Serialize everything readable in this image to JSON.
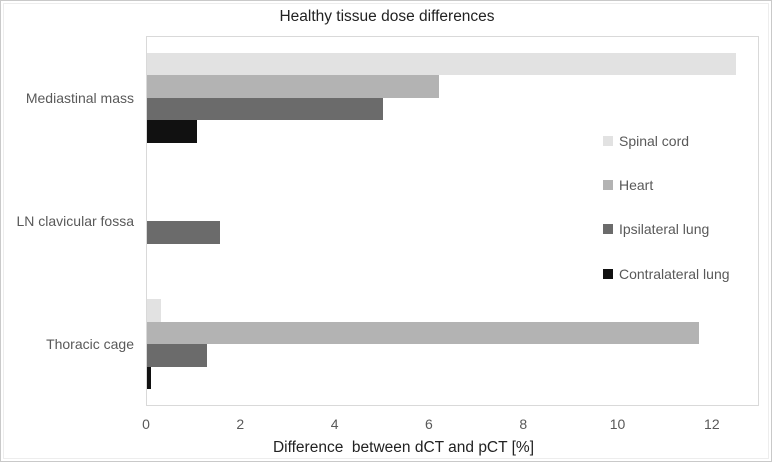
{
  "chart_data": {
    "type": "bar",
    "orientation": "horizontal",
    "title": "Healthy tissue dose differences",
    "xlabel": "Difference  between dCT and pCT [%]",
    "ylabel": "",
    "categories": [
      "Mediastinal mass",
      "LN clavicular fossa",
      "Thoracic cage"
    ],
    "series": [
      {
        "name": "Spinal cord",
        "color": "#e2e2e2",
        "values": [
          12.5,
          0,
          0.3
        ]
      },
      {
        "name": "Heart",
        "color": "#b3b3b3",
        "values": [
          6.2,
          0,
          11.7
        ]
      },
      {
        "name": "Ipsilateral lung",
        "color": "#6b6b6b",
        "values": [
          5.0,
          1.55,
          1.27
        ]
      },
      {
        "name": "Contralateral lung",
        "color": "#111111",
        "values": [
          1.05,
          0,
          0.08
        ]
      }
    ],
    "xlim": [
      0,
      13
    ],
    "xticks": [
      0,
      2,
      4,
      6,
      8,
      10,
      12
    ],
    "grid": false,
    "legend_position": "right-inside",
    "plot_border_color": "#d9d9d9",
    "text_colors": {
      "title": "#222222",
      "labels": "#595959"
    }
  }
}
